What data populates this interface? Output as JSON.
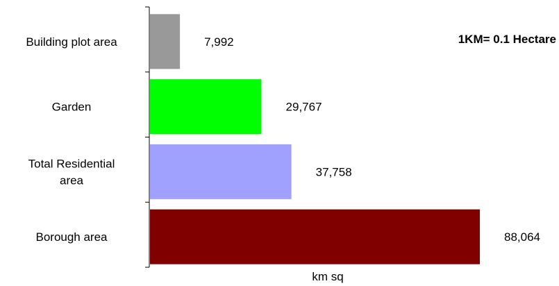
{
  "chart_data": {
    "type": "bar",
    "orientation": "horizontal",
    "categories": [
      [
        "Building plot area"
      ],
      [
        "Garden"
      ],
      [
        "Total Residential",
        "area"
      ],
      [
        "Borough area"
      ]
    ],
    "values": [
      7992,
      29767,
      37758,
      88064
    ],
    "value_labels": [
      "7,992",
      "29,767",
      "37,758",
      "88,064"
    ],
    "colors": [
      "#999999",
      "#00ff00",
      "#a0a0ff",
      "#800000"
    ],
    "xlabel": "km sq",
    "ylabel": "",
    "title": "",
    "xlim": [
      0,
      88064
    ],
    "grid": false,
    "legend": "none"
  },
  "annotation": "1KM= 0.1 Hectare"
}
